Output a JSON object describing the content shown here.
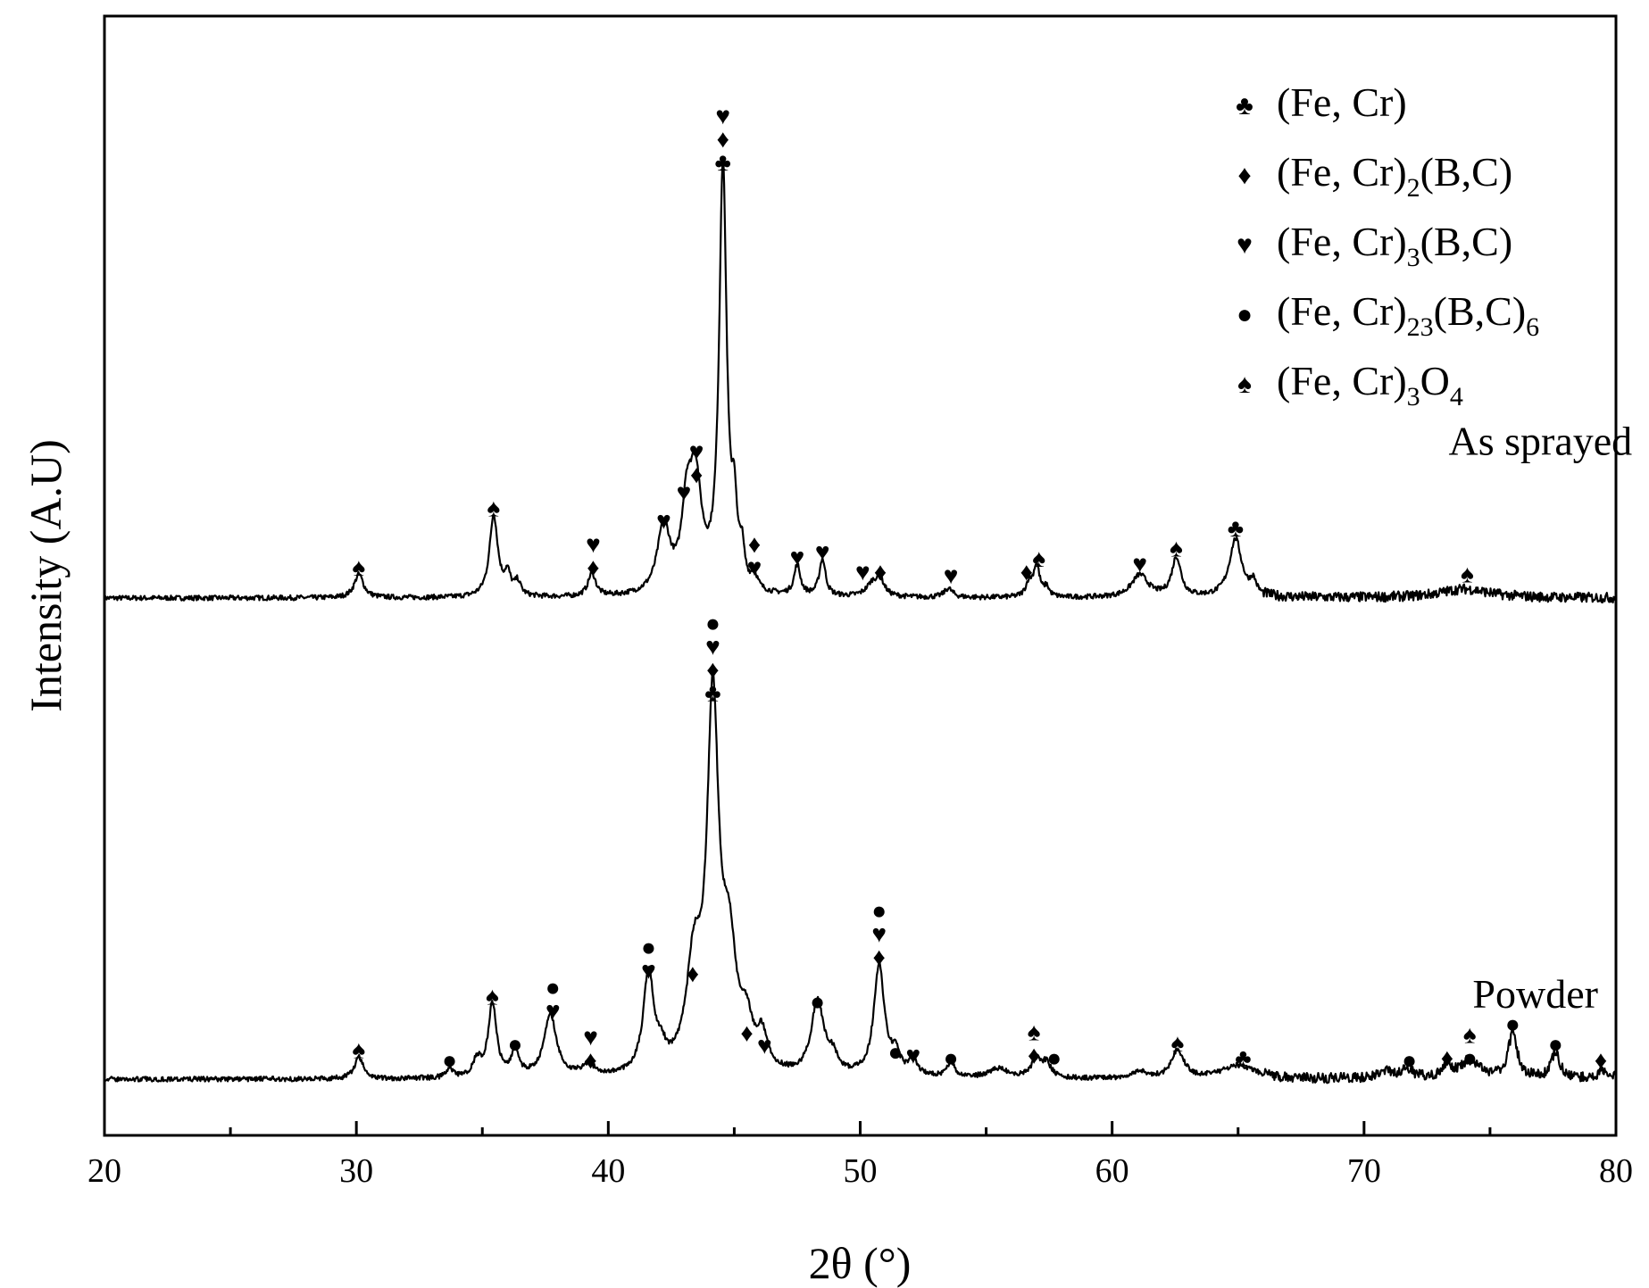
{
  "chart_data": {
    "type": "line",
    "xlabel": "2θ (°)",
    "ylabel": "Intensity (A.U)",
    "xlim": [
      20,
      80
    ],
    "xticks": [
      "20",
      "30",
      "40",
      "50",
      "60",
      "70",
      "80"
    ],
    "grid": false,
    "legend_position": "top-right",
    "legend": [
      {
        "symbol": "club",
        "glyph": "♣",
        "base": "(Fe, Cr)",
        "parts": []
      },
      {
        "symbol": "diamond",
        "glyph": "♦",
        "base": "(Fe, Cr)",
        "parts": [
          {
            "sub": "2"
          },
          {
            "text": "(B,C)"
          }
        ]
      },
      {
        "symbol": "heart",
        "glyph": "♥",
        "base": "(Fe, Cr)",
        "parts": [
          {
            "sub": "3"
          },
          {
            "text": "(B,C)"
          }
        ]
      },
      {
        "symbol": "dot",
        "glyph": "●",
        "base": "(Fe, Cr)",
        "parts": [
          {
            "sub": "23"
          },
          {
            "text": "(B,C)"
          },
          {
            "sub": "6"
          }
        ]
      },
      {
        "symbol": "spade",
        "glyph": "♠",
        "base": "(Fe, Cr)",
        "parts": [
          {
            "sub": "3"
          },
          {
            "text": "O"
          },
          {
            "sub": "4"
          }
        ]
      }
    ],
    "series": [
      {
        "name": "As sprayed",
        "baseline": 0.48,
        "peaks": [
          {
            "x": 30.1,
            "h": 0.021,
            "w": 0.22
          },
          {
            "x": 35.45,
            "h": 0.073,
            "w": 0.2
          },
          {
            "x": 36.0,
            "h": 0.018,
            "w": 0.15
          },
          {
            "x": 36.4,
            "h": 0.012,
            "w": 0.15
          },
          {
            "x": 39.35,
            "h": 0.021,
            "w": 0.18
          },
          {
            "x": 42.2,
            "h": 0.06,
            "w": 0.3
          },
          {
            "x": 43.1,
            "h": 0.06,
            "w": 0.22
          },
          {
            "x": 43.45,
            "h": 0.1,
            "w": 0.3
          },
          {
            "x": 44.55,
            "h": 0.38,
            "w": 0.18
          },
          {
            "x": 45.0,
            "h": 0.06,
            "w": 0.12
          },
          {
            "x": 45.3,
            "h": 0.03,
            "w": 0.12
          },
          {
            "x": 45.8,
            "h": 0.012,
            "w": 0.15
          },
          {
            "x": 47.5,
            "h": 0.027,
            "w": 0.15
          },
          {
            "x": 48.5,
            "h": 0.033,
            "w": 0.15
          },
          {
            "x": 50.5,
            "h": 0.012,
            "w": 0.3
          },
          {
            "x": 50.8,
            "h": 0.012,
            "w": 0.2
          },
          {
            "x": 53.5,
            "h": 0.008,
            "w": 0.2
          },
          {
            "x": 56.7,
            "h": 0.012,
            "w": 0.15
          },
          {
            "x": 57.0,
            "h": 0.028,
            "w": 0.15
          },
          {
            "x": 57.4,
            "h": 0.008,
            "w": 0.12
          },
          {
            "x": 61.1,
            "h": 0.02,
            "w": 0.4
          },
          {
            "x": 62.55,
            "h": 0.035,
            "w": 0.22
          },
          {
            "x": 64.9,
            "h": 0.052,
            "w": 0.3
          },
          {
            "x": 65.6,
            "h": 0.012,
            "w": 0.15
          },
          {
            "x": 74.0,
            "h": 0.008,
            "w": 1.2
          }
        ]
      },
      {
        "name": "Powder",
        "baseline": 0.05,
        "peaks": [
          {
            "x": 30.1,
            "h": 0.02,
            "w": 0.2
          },
          {
            "x": 33.7,
            "h": 0.008,
            "w": 0.15
          },
          {
            "x": 34.8,
            "h": 0.015,
            "w": 0.2
          },
          {
            "x": 35.4,
            "h": 0.065,
            "w": 0.2
          },
          {
            "x": 36.3,
            "h": 0.023,
            "w": 0.18
          },
          {
            "x": 37.7,
            "h": 0.055,
            "w": 0.3
          },
          {
            "x": 39.2,
            "h": 0.01,
            "w": 0.3
          },
          {
            "x": 41.6,
            "h": 0.09,
            "w": 0.25
          },
          {
            "x": 42.1,
            "h": 0.015,
            "w": 0.2
          },
          {
            "x": 43.4,
            "h": 0.09,
            "w": 0.35
          },
          {
            "x": 44.15,
            "h": 0.32,
            "w": 0.28
          },
          {
            "x": 44.8,
            "h": 0.1,
            "w": 0.35
          },
          {
            "x": 45.5,
            "h": 0.035,
            "w": 0.25
          },
          {
            "x": 46.1,
            "h": 0.03,
            "w": 0.25
          },
          {
            "x": 48.3,
            "h": 0.065,
            "w": 0.3
          },
          {
            "x": 48.9,
            "h": 0.015,
            "w": 0.25
          },
          {
            "x": 50.75,
            "h": 0.1,
            "w": 0.25
          },
          {
            "x": 51.4,
            "h": 0.018,
            "w": 0.2
          },
          {
            "x": 52.1,
            "h": 0.015,
            "w": 0.2
          },
          {
            "x": 53.6,
            "h": 0.012,
            "w": 0.2
          },
          {
            "x": 55.5,
            "h": 0.008,
            "w": 0.5
          },
          {
            "x": 57.0,
            "h": 0.016,
            "w": 0.25
          },
          {
            "x": 57.4,
            "h": 0.012,
            "w": 0.2
          },
          {
            "x": 61.1,
            "h": 0.006,
            "w": 0.3
          },
          {
            "x": 62.6,
            "h": 0.025,
            "w": 0.3
          },
          {
            "x": 65.0,
            "h": 0.012,
            "w": 0.8
          },
          {
            "x": 70.8,
            "h": 0.006,
            "w": 0.4
          },
          {
            "x": 71.7,
            "h": 0.008,
            "w": 0.3
          },
          {
            "x": 73.3,
            "h": 0.012,
            "w": 0.2
          },
          {
            "x": 74.2,
            "h": 0.016,
            "w": 0.5
          },
          {
            "x": 75.9,
            "h": 0.04,
            "w": 0.22
          },
          {
            "x": 77.6,
            "h": 0.022,
            "w": 0.22
          },
          {
            "x": 79.5,
            "h": 0.008,
            "w": 0.25
          }
        ]
      }
    ],
    "annotations": [
      {
        "x": 30.1,
        "y": 0.5,
        "symbols": [
          "spade"
        ]
      },
      {
        "x": 35.45,
        "y": 0.553,
        "symbols": [
          "spade"
        ]
      },
      {
        "x": 39.4,
        "y": 0.5,
        "symbols": [
          "diamond",
          "heart"
        ]
      },
      {
        "x": 42.2,
        "y": 0.542,
        "symbols": [
          "heart"
        ]
      },
      {
        "x": 43.0,
        "y": 0.567,
        "symbols": [
          "heart"
        ]
      },
      {
        "x": 43.5,
        "y": 0.583,
        "symbols": [
          "diamond",
          "heart"
        ]
      },
      {
        "x": 44.55,
        "y": 0.862,
        "symbols": [
          "club",
          "diamond",
          "heart"
        ]
      },
      {
        "x": 45.8,
        "y": 0.5,
        "symbols": [
          "heart",
          "diamond"
        ]
      },
      {
        "x": 47.5,
        "y": 0.509,
        "symbols": [
          "heart"
        ]
      },
      {
        "x": 48.5,
        "y": 0.514,
        "symbols": [
          "heart"
        ]
      },
      {
        "x": 50.1,
        "y": 0.496,
        "symbols": [
          "heart"
        ]
      },
      {
        "x": 50.8,
        "y": 0.496,
        "symbols": [
          "diamond"
        ]
      },
      {
        "x": 53.6,
        "y": 0.493,
        "symbols": [
          "heart"
        ]
      },
      {
        "x": 56.6,
        "y": 0.496,
        "symbols": [
          "diamond"
        ]
      },
      {
        "x": 57.1,
        "y": 0.508,
        "symbols": [
          "spade"
        ]
      },
      {
        "x": 61.1,
        "y": 0.503,
        "symbols": [
          "heart"
        ]
      },
      {
        "x": 62.55,
        "y": 0.517,
        "symbols": [
          "spade"
        ]
      },
      {
        "x": 64.9,
        "y": 0.535,
        "symbols": [
          "club"
        ]
      },
      {
        "x": 74.1,
        "y": 0.494,
        "symbols": [
          "spade"
        ]
      },
      {
        "x": 30.1,
        "y": 0.069,
        "symbols": [
          "spade"
        ]
      },
      {
        "x": 33.7,
        "y": 0.06,
        "symbols": [
          "dot"
        ]
      },
      {
        "x": 35.4,
        "y": 0.117,
        "symbols": [
          "spade"
        ]
      },
      {
        "x": 36.3,
        "y": 0.074,
        "symbols": [
          "dot"
        ]
      },
      {
        "x": 37.8,
        "y": 0.104,
        "symbols": [
          "heart",
          "dot"
        ]
      },
      {
        "x": 39.3,
        "y": 0.06,
        "symbols": [
          "diamond",
          "heart"
        ]
      },
      {
        "x": 41.6,
        "y": 0.14,
        "symbols": [
          "heart",
          "dot"
        ]
      },
      {
        "x": 43.35,
        "y": 0.137,
        "symbols": [
          "diamond"
        ]
      },
      {
        "x": 44.15,
        "y": 0.388,
        "symbols": [
          "club",
          "diamond",
          "heart",
          "dot"
        ]
      },
      {
        "x": 45.5,
        "y": 0.084,
        "symbols": [
          "diamond"
        ]
      },
      {
        "x": 46.2,
        "y": 0.073,
        "symbols": [
          "heart"
        ]
      },
      {
        "x": 48.3,
        "y": 0.112,
        "symbols": [
          "dot"
        ]
      },
      {
        "x": 50.75,
        "y": 0.152,
        "symbols": [
          "diamond",
          "heart",
          "dot"
        ]
      },
      {
        "x": 51.4,
        "y": 0.067,
        "symbols": [
          "dot"
        ]
      },
      {
        "x": 52.1,
        "y": 0.064,
        "symbols": [
          "heart"
        ]
      },
      {
        "x": 53.6,
        "y": 0.062,
        "symbols": [
          "dot"
        ]
      },
      {
        "x": 56.9,
        "y": 0.064,
        "symbols": [
          "diamond",
          "spade"
        ]
      },
      {
        "x": 57.7,
        "y": 0.062,
        "symbols": [
          "dot"
        ]
      },
      {
        "x": 62.6,
        "y": 0.075,
        "symbols": [
          "spade"
        ]
      },
      {
        "x": 65.2,
        "y": 0.062,
        "symbols": [
          "club"
        ]
      },
      {
        "x": 71.8,
        "y": 0.06,
        "symbols": [
          "dot"
        ]
      },
      {
        "x": 73.3,
        "y": 0.062,
        "symbols": [
          "diamond"
        ]
      },
      {
        "x": 74.2,
        "y": 0.062,
        "symbols": [
          "dot",
          "spade"
        ]
      },
      {
        "x": 75.9,
        "y": 0.092,
        "symbols": [
          "dot"
        ]
      },
      {
        "x": 77.6,
        "y": 0.074,
        "symbols": [
          "dot"
        ]
      },
      {
        "x": 79.4,
        "y": 0.06,
        "symbols": [
          "diamond"
        ]
      }
    ]
  }
}
